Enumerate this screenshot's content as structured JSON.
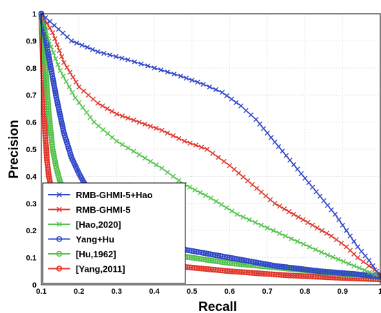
{
  "chart_data": {
    "type": "line",
    "xlabel": "Recall",
    "ylabel": "Precision",
    "xlim": [
      0.1,
      1
    ],
    "ylim": [
      0,
      1
    ],
    "xticks": [
      "0.1",
      "0.2",
      "0.3",
      "0.4",
      "0.5",
      "0.6",
      "0.7",
      "0.8",
      "0.9",
      "1"
    ],
    "yticks": [
      "0",
      "0.1",
      "0.2",
      "0.3",
      "0.4",
      "0.5",
      "0.6",
      "0.7",
      "0.8",
      "0.9",
      "1"
    ],
    "grid": true,
    "legend_position": "bottom-left",
    "series": [
      {
        "name": "RMB-GHMI-5+Hao",
        "color": "#2f47c8",
        "marker": "x",
        "x": [
          0.1,
          0.18,
          0.25,
          0.33,
          0.4,
          0.47,
          0.53,
          0.58,
          0.63,
          0.67,
          0.7,
          0.73,
          0.76,
          0.79,
          0.82,
          0.85,
          0.88,
          0.91,
          0.94,
          0.97,
          1.0
        ],
        "y": [
          1.0,
          0.9,
          0.86,
          0.83,
          0.8,
          0.77,
          0.74,
          0.71,
          0.66,
          0.61,
          0.56,
          0.51,
          0.46,
          0.41,
          0.36,
          0.31,
          0.26,
          0.2,
          0.14,
          0.09,
          0.03
        ]
      },
      {
        "name": "RMB-GHMI-5",
        "color": "#e0352b",
        "marker": "x",
        "x": [
          0.1,
          0.13,
          0.16,
          0.2,
          0.25,
          0.3,
          0.36,
          0.42,
          0.48,
          0.54,
          0.6,
          0.66,
          0.72,
          0.77,
          0.82,
          0.87,
          0.91,
          0.94,
          0.97,
          1.0
        ],
        "y": [
          1.0,
          0.93,
          0.82,
          0.73,
          0.67,
          0.63,
          0.6,
          0.57,
          0.53,
          0.5,
          0.44,
          0.37,
          0.3,
          0.26,
          0.22,
          0.18,
          0.14,
          0.1,
          0.07,
          0.04
        ]
      },
      {
        "name": "[Hao,2020]",
        "color": "#52c24a",
        "marker": "x",
        "x": [
          0.1,
          0.12,
          0.15,
          0.19,
          0.24,
          0.3,
          0.36,
          0.42,
          0.48,
          0.55,
          0.62,
          0.7,
          0.78,
          0.86,
          0.93,
          1.0
        ],
        "y": [
          1.0,
          0.9,
          0.79,
          0.69,
          0.6,
          0.53,
          0.48,
          0.43,
          0.37,
          0.32,
          0.26,
          0.21,
          0.16,
          0.11,
          0.07,
          0.03
        ]
      },
      {
        "name": "Yang+Hu",
        "color": "#2f47c8",
        "marker": "o",
        "x": [
          0.1,
          0.12,
          0.14,
          0.16,
          0.18,
          0.2,
          0.22,
          0.25,
          0.3,
          0.38,
          0.48,
          0.6,
          0.72,
          0.84,
          0.93,
          1.0
        ],
        "y": [
          1.0,
          0.84,
          0.69,
          0.56,
          0.47,
          0.41,
          0.36,
          0.3,
          0.23,
          0.17,
          0.13,
          0.1,
          0.07,
          0.05,
          0.04,
          0.03
        ]
      },
      {
        "name": "[Hu,1962]",
        "color": "#52c24a",
        "marker": "o",
        "x": [
          0.1,
          0.11,
          0.12,
          0.13,
          0.14,
          0.15,
          0.17,
          0.2,
          0.25,
          0.33,
          0.45,
          0.6,
          0.75,
          0.9,
          1.0
        ],
        "y": [
          1.0,
          0.82,
          0.63,
          0.5,
          0.43,
          0.38,
          0.32,
          0.26,
          0.2,
          0.15,
          0.11,
          0.08,
          0.06,
          0.04,
          0.03
        ]
      },
      {
        "name": "[Yang,2011]",
        "color": "#e0352b",
        "marker": "o",
        "x": [
          0.1,
          0.105,
          0.11,
          0.115,
          0.12,
          0.13,
          0.15,
          0.2,
          0.3,
          0.45,
          0.6,
          0.75,
          0.9,
          1.0
        ],
        "y": [
          1.0,
          0.78,
          0.56,
          0.46,
          0.4,
          0.33,
          0.26,
          0.17,
          0.11,
          0.07,
          0.05,
          0.035,
          0.025,
          0.02
        ]
      }
    ]
  }
}
